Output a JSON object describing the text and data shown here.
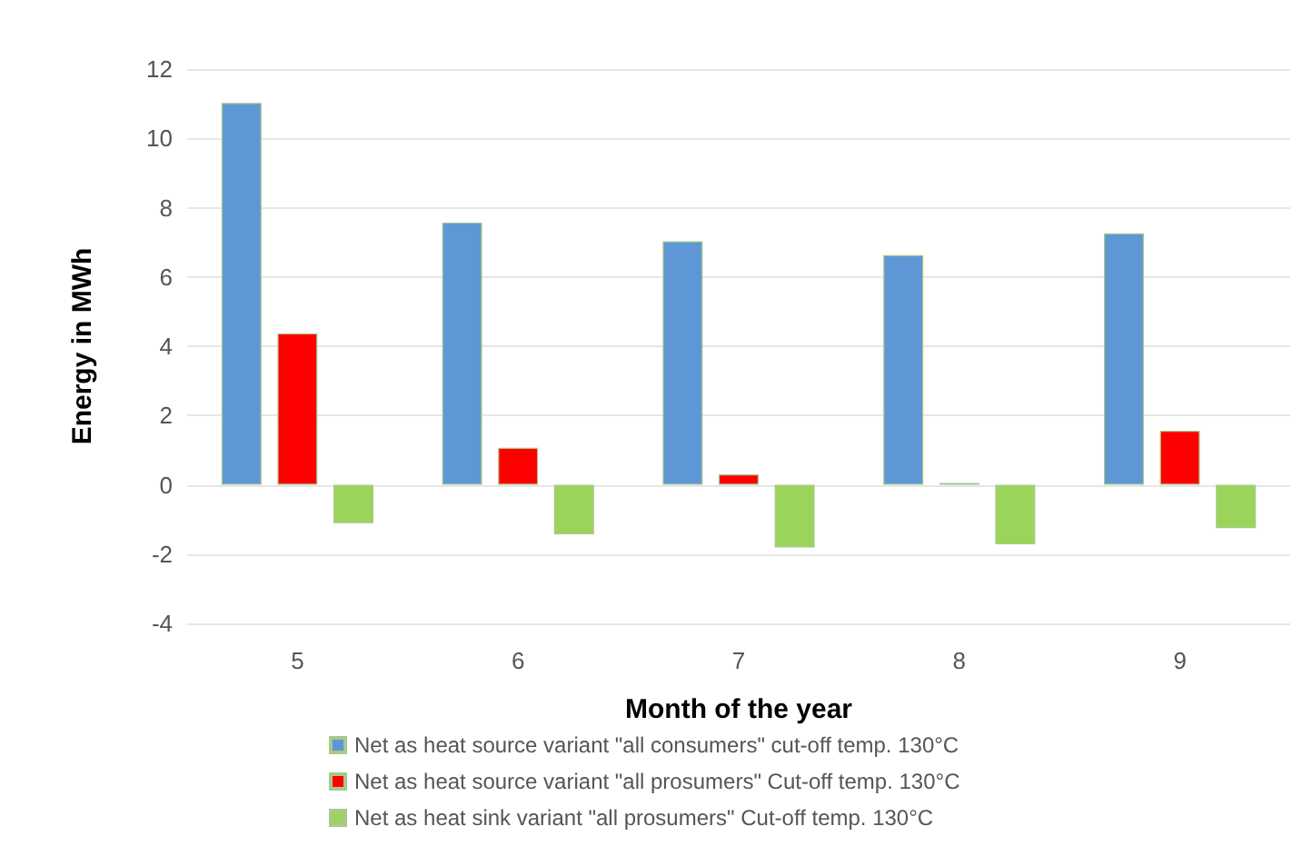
{
  "chart_data": {
    "type": "bar",
    "xlabel": "Month of the year",
    "ylabel": "Energy in MWh",
    "categories": [
      "5",
      "6",
      "7",
      "8",
      "9"
    ],
    "series": [
      {
        "name": "Net as heat source variant \"all consumers\" cut-off temp. 130°C",
        "color": "#5f97d6",
        "values": [
          11.02,
          7.57,
          7.03,
          6.63,
          7.26
        ]
      },
      {
        "name": "Net as heat source variant \"all prosumers\" Cut-off temp. 130°C",
        "color": "#ff0000",
        "values": [
          4.37,
          1.07,
          0.3,
          0.05,
          1.56
        ]
      },
      {
        "name": "Net as heat sink variant \"all prosumers\" Cut-off temp. 130°C",
        "color": "#9bd45b",
        "values": [
          -1.11,
          -1.43,
          -1.81,
          -1.72,
          -1.25
        ]
      }
    ],
    "ylim": [
      -4,
      12
    ],
    "yticks": [
      -4,
      -2,
      0,
      2,
      4,
      6,
      8,
      10,
      12
    ],
    "grid": "y",
    "legend": "bottom"
  }
}
